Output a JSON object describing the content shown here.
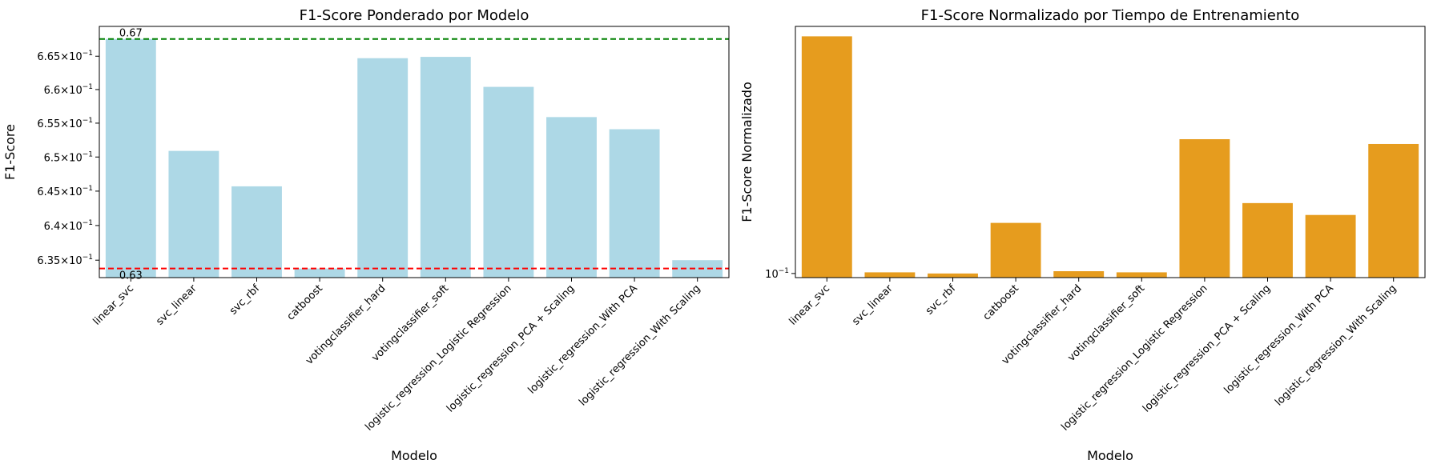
{
  "chart_data": [
    {
      "type": "bar",
      "title": "F1-Score Ponderado por Modelo",
      "xlabel": "Modelo",
      "ylabel": "F1-Score",
      "yscale": "log",
      "ylim": [
        0.6325,
        0.6695
      ],
      "yticks": [
        {
          "value": 0.635,
          "mantissa": "6.35",
          "exp": "−1"
        },
        {
          "value": 0.64,
          "mantissa": "6.4",
          "exp": "−1"
        },
        {
          "value": 0.645,
          "mantissa": "6.45",
          "exp": "−1"
        },
        {
          "value": 0.65,
          "mantissa": "6.5",
          "exp": "−1"
        },
        {
          "value": 0.655,
          "mantissa": "6.55",
          "exp": "−1"
        },
        {
          "value": 0.66,
          "mantissa": "6.6",
          "exp": "−1"
        },
        {
          "value": 0.665,
          "mantissa": "6.65",
          "exp": "−1"
        }
      ],
      "color": "#add8e6",
      "categories": [
        "linear_svc",
        "svc_linear",
        "svc_rbf",
        "catboost",
        "votingclassifier_hard",
        "votingclassifier_soft",
        "logistic_regression_Logistic Regression",
        "logistic_regression_PCA + Scaling",
        "logistic_regression_With PCA",
        "logistic_regression_With Scaling"
      ],
      "values": [
        0.6676,
        0.6509,
        0.6457,
        0.6338,
        0.6647,
        0.6649,
        0.6604,
        0.6559,
        0.6541,
        0.635
      ],
      "hlines": [
        {
          "value": 0.6676,
          "color": "#008000",
          "label": "0.67"
        },
        {
          "value": 0.6338,
          "color": "#ff0000",
          "label": "0.63"
        }
      ],
      "grid": false
    },
    {
      "type": "bar",
      "title": "F1-Score Normalizado por Tiempo de Entrenamiento",
      "xlabel": "Modelo",
      "ylabel": "F1-Score Normalizado",
      "yscale": "log",
      "ylim": [
        0.0965,
        0.85
      ],
      "yticks": [
        {
          "value": 0.1,
          "mantissa": "10",
          "exp": "−1"
        }
      ],
      "color": "#e69c1e",
      "categories": [
        "linear_svc",
        "svc_linear",
        "svc_rbf",
        "catboost",
        "votingclassifier_hard",
        "votingclassifier_soft",
        "logistic_regression_Logistic Regression",
        "logistic_regression_PCA + Scaling",
        "logistic_regression_With PCA",
        "logistic_regression_With Scaling"
      ],
      "values": [
        0.78,
        0.101,
        0.1,
        0.155,
        0.102,
        0.101,
        0.32,
        0.184,
        0.166,
        0.307
      ],
      "grid": false
    }
  ]
}
